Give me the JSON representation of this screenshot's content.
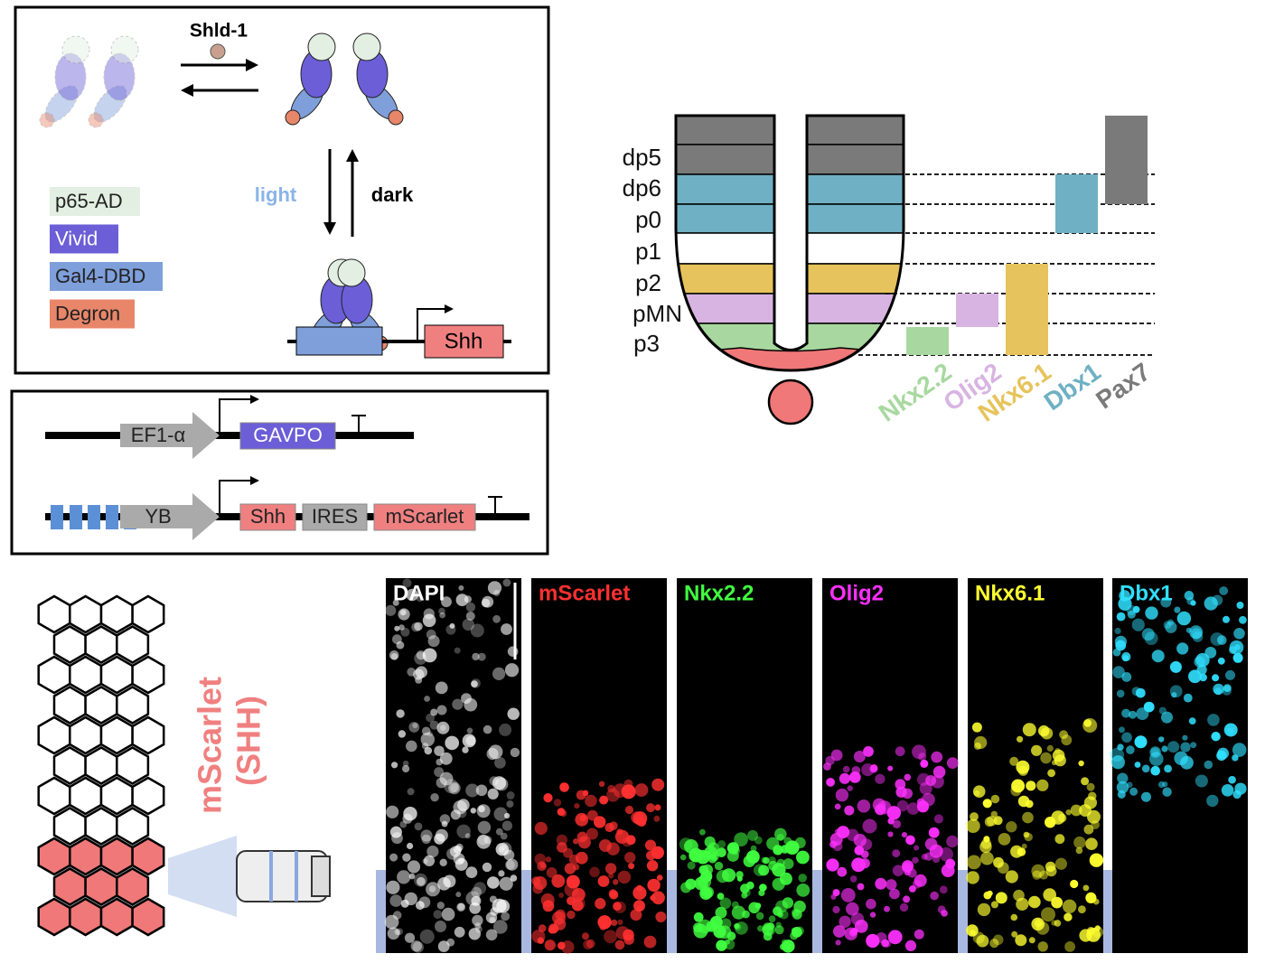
{
  "panel_a": {
    "ligand": "Shld-1",
    "light": "light",
    "dark": "dark",
    "legend": [
      "p65-AD",
      "Vivid",
      "Gal4-DBD",
      "Degron"
    ],
    "gene": "Shh"
  },
  "panel_b": {
    "construct_1": [
      "EF1-α",
      "GAVPO"
    ],
    "construct_2": [
      "YB",
      "Shh",
      "IRES",
      "mScarlet"
    ]
  },
  "panel_c": {
    "domains": [
      "dp5",
      "dp6",
      "p0",
      "p1",
      "p2",
      "pMN",
      "p3"
    ],
    "markers": [
      "Nkx2.2",
      "Olig2",
      "Nkx6.1",
      "Dbx1",
      "Pax7"
    ]
  },
  "panel_d": {
    "label": "mScarlet",
    "sublabel": "(SHH)"
  },
  "panel_e": {
    "channels": [
      "DAPI",
      "mScarlet",
      "Nkx2.2",
      "Olig2",
      "Nkx6.1",
      "Dbx1"
    ]
  }
}
